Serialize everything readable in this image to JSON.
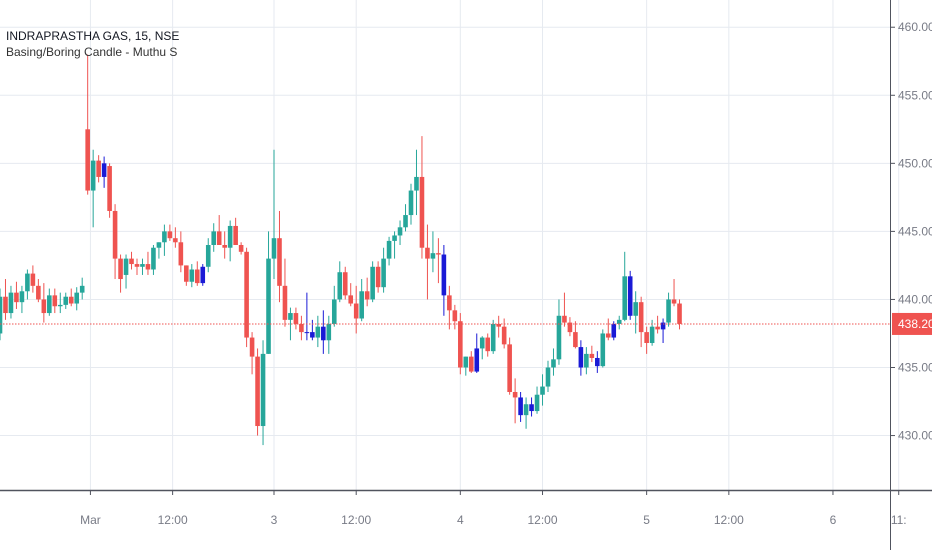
{
  "legend": {
    "symbol": "INDRAPRASTHA GAS, 15, NSE",
    "indicator": "Basing/Boring Candle - Muthu S"
  },
  "colors": {
    "up": "#26a69a",
    "down": "#ef5350",
    "boring": "#1a1ad6",
    "grid": "#e6eaf0",
    "axis": "#50535e",
    "price_line": "#ef5350"
  },
  "chart_data": {
    "type": "candlestick",
    "title": "INDRAPRASTHA GAS, 15, NSE",
    "subtitle": "Basing/Boring Candle - Muthu S",
    "ylim": [
      426,
      462
    ],
    "y_ticks": [
      430,
      435,
      440,
      445,
      450,
      455,
      460
    ],
    "y_tick_labels": [
      "430.00",
      "435.00",
      "440.00",
      "445.00",
      "450.00",
      "455.00",
      "460.00"
    ],
    "x_tick_labels": [
      {
        "label": "Mar",
        "bar": 16.5
      },
      {
        "label": "12:00",
        "bar": 31.5
      },
      {
        "label": "3",
        "bar": 50
      },
      {
        "label": "12:00",
        "bar": 65
      },
      {
        "label": "4",
        "bar": 84
      },
      {
        "label": "12:00",
        "bar": 99
      },
      {
        "label": "5",
        "bar": 118
      },
      {
        "label": "12:00",
        "bar": 133
      },
      {
        "label": "6",
        "bar": 152
      },
      {
        "label": "11:",
        "bar": 164
      }
    ],
    "last_price": 438.2,
    "last_price_label": "438.20",
    "candles": [
      [
        437.5,
        440.8,
        437.0,
        440.2
      ],
      [
        440.2,
        441.5,
        438.5,
        439.0
      ],
      [
        439.0,
        441.0,
        438.6,
        440.5
      ],
      [
        440.5,
        441.3,
        439.3,
        439.8
      ],
      [
        439.8,
        441.0,
        439.0,
        440.6
      ],
      [
        440.6,
        442.2,
        440.0,
        441.9
      ],
      [
        441.9,
        442.5,
        440.5,
        441.0
      ],
      [
        441.0,
        441.5,
        439.8,
        440.0
      ],
      [
        440.0,
        441.2,
        438.3,
        439.0
      ],
      [
        439.0,
        440.8,
        438.8,
        440.3
      ],
      [
        440.3,
        440.8,
        439.0,
        439.5
      ],
      [
        439.5,
        440.5,
        439.0,
        439.6
      ],
      [
        439.6,
        440.5,
        439.3,
        440.2
      ],
      [
        440.2,
        440.8,
        439.5,
        439.7
      ],
      [
        439.7,
        440.9,
        439.2,
        440.5
      ],
      [
        440.5,
        441.6,
        440.0,
        441.0
      ],
      [
        452.5,
        458.0,
        447.7,
        448.0
      ],
      [
        448.0,
        451.0,
        445.3,
        450.2
      ],
      [
        450.2,
        450.6,
        448.6,
        449.0
      ],
      [
        449.0,
        450.5,
        448.2,
        450.0
      ],
      [
        449.8,
        450.0,
        446.0,
        446.5
      ],
      [
        446.5,
        447.0,
        441.5,
        443.0
      ],
      [
        443.0,
        443.3,
        440.5,
        441.5
      ],
      [
        441.8,
        443.3,
        440.8,
        443.0
      ],
      [
        443.0,
        443.5,
        442.2,
        442.6
      ],
      [
        442.6,
        443.0,
        441.8,
        442.4
      ],
      [
        442.4,
        443.0,
        441.8,
        442.6
      ],
      [
        442.6,
        443.5,
        441.8,
        442.2
      ],
      [
        442.2,
        444.0,
        441.8,
        443.8
      ],
      [
        443.8,
        444.2,
        443.0,
        444.2
      ],
      [
        444.2,
        445.5,
        443.2,
        445.0
      ],
      [
        445.0,
        445.5,
        444.3,
        444.5
      ],
      [
        444.5,
        445.3,
        443.8,
        444.2
      ],
      [
        444.2,
        445.0,
        442.0,
        442.5
      ],
      [
        442.5,
        442.5,
        441.0,
        441.3
      ],
      [
        441.3,
        442.6,
        440.9,
        442.2
      ],
      [
        442.2,
        442.8,
        441.0,
        441.2
      ],
      [
        441.2,
        442.6,
        441.0,
        442.4
      ],
      [
        442.4,
        444.5,
        442.0,
        444.0
      ],
      [
        444.0,
        445.6,
        443.5,
        445.0
      ],
      [
        445.0,
        446.2,
        444.0,
        444.0
      ],
      [
        444.0,
        445.0,
        443.0,
        443.8
      ],
      [
        443.8,
        445.8,
        442.8,
        445.4
      ],
      [
        445.4,
        446.0,
        444.0,
        444.0
      ],
      [
        444.0,
        444.2,
        443.3,
        443.5
      ],
      [
        443.5,
        443.8,
        436.5,
        437.2
      ],
      [
        437.2,
        437.6,
        434.5,
        435.8
      ],
      [
        435.8,
        436.4,
        430.0,
        430.7
      ],
      [
        430.7,
        437.0,
        429.3,
        436.0
      ],
      [
        436.0,
        445.0,
        436.0,
        443.0
      ],
      [
        443.0,
        451.0,
        441.5,
        444.5
      ],
      [
        444.5,
        446.5,
        439.8,
        441.0
      ],
      [
        441.0,
        443.0,
        438.0,
        438.5
      ],
      [
        438.5,
        439.4,
        437.0,
        439.0
      ],
      [
        439.0,
        439.4,
        437.8,
        438.2
      ],
      [
        438.2,
        438.8,
        437.0,
        437.6
      ],
      [
        437.6,
        440.5,
        437.0,
        437.6
      ],
      [
        437.6,
        438.5,
        437.0,
        437.2
      ],
      [
        437.2,
        438.8,
        436.5,
        438.0
      ],
      [
        438.0,
        439.2,
        436.0,
        437.0
      ],
      [
        437.0,
        438.8,
        436.0,
        438.2
      ],
      [
        438.2,
        441.0,
        438.0,
        440.0
      ],
      [
        440.0,
        442.8,
        439.8,
        442.0
      ],
      [
        442.0,
        442.4,
        440.0,
        440.3
      ],
      [
        440.3,
        441.2,
        439.5,
        439.7
      ],
      [
        439.7,
        441.0,
        437.5,
        438.6
      ],
      [
        438.6,
        441.5,
        438.4,
        440.6
      ],
      [
        440.6,
        441.6,
        439.5,
        440.0
      ],
      [
        440.0,
        442.8,
        439.8,
        442.4
      ],
      [
        442.4,
        442.8,
        440.5,
        440.9
      ],
      [
        440.9,
        443.8,
        440.5,
        443.0
      ],
      [
        443.0,
        444.6,
        442.5,
        444.3
      ],
      [
        444.3,
        445.0,
        443.0,
        444.7
      ],
      [
        444.7,
        445.8,
        444.0,
        445.3
      ],
      [
        445.3,
        447.0,
        445.0,
        446.2
      ],
      [
        446.2,
        448.5,
        445.5,
        448.0
      ],
      [
        448.0,
        451.0,
        446.2,
        449.0
      ],
      [
        449.0,
        452.0,
        443.0,
        443.8
      ],
      [
        443.8,
        445.5,
        440.0,
        443.0
      ],
      [
        443.0,
        445.0,
        442.0,
        443.4
      ],
      [
        443.4,
        444.5,
        441.2,
        443.3
      ],
      [
        443.3,
        444.0,
        438.8,
        440.3
      ],
      [
        440.3,
        441.0,
        437.8,
        439.2
      ],
      [
        439.2,
        439.6,
        437.8,
        438.4
      ],
      [
        438.4,
        439.0,
        434.5,
        435.0
      ],
      [
        435.0,
        435.8,
        434.4,
        435.8
      ],
      [
        435.8,
        436.2,
        434.6,
        434.7
      ],
      [
        434.7,
        437.5,
        434.6,
        436.4
      ],
      [
        436.4,
        437.3,
        435.6,
        437.2
      ],
      [
        437.2,
        437.5,
        435.8,
        436.2
      ],
      [
        436.2,
        438.5,
        436.0,
        438.2
      ],
      [
        438.2,
        438.8,
        437.2,
        438.0
      ],
      [
        438.0,
        438.6,
        436.4,
        436.7
      ],
      [
        436.7,
        437.2,
        433.0,
        433.2
      ],
      [
        433.2,
        434.2,
        430.9,
        432.8
      ],
      [
        432.8,
        433.2,
        431.0,
        431.5
      ],
      [
        431.5,
        432.8,
        430.5,
        432.3
      ],
      [
        432.3,
        432.8,
        431.4,
        431.8
      ],
      [
        431.8,
        433.6,
        431.6,
        433.0
      ],
      [
        433.0,
        434.5,
        432.2,
        433.6
      ],
      [
        433.6,
        435.5,
        433.2,
        435.0
      ],
      [
        435.0,
        436.4,
        434.4,
        435.6
      ],
      [
        435.6,
        440.0,
        435.2,
        438.8
      ],
      [
        438.8,
        440.5,
        438.0,
        438.3
      ],
      [
        438.3,
        438.7,
        437.3,
        437.6
      ],
      [
        437.6,
        438.4,
        436.4,
        436.5
      ],
      [
        436.5,
        437.0,
        434.4,
        435.0
      ],
      [
        435.0,
        436.5,
        434.5,
        436.0
      ],
      [
        436.0,
        436.6,
        435.4,
        435.7
      ],
      [
        435.7,
        436.2,
        434.6,
        435.1
      ],
      [
        435.1,
        437.8,
        435.0,
        437.5
      ],
      [
        437.5,
        438.6,
        437.0,
        437.2
      ],
      [
        437.2,
        438.4,
        437.0,
        438.2
      ],
      [
        438.2,
        438.8,
        437.8,
        438.5
      ],
      [
        438.5,
        443.5,
        438.4,
        441.7
      ],
      [
        441.7,
        442.1,
        438.5,
        438.8
      ],
      [
        438.8,
        440.6,
        437.5,
        439.8
      ],
      [
        439.8,
        440.2,
        436.5,
        437.6
      ],
      [
        437.6,
        438.0,
        436.0,
        436.8
      ],
      [
        436.8,
        438.5,
        436.6,
        438.0
      ],
      [
        438.0,
        438.8,
        437.5,
        437.8
      ],
      [
        437.8,
        438.6,
        436.8,
        438.3
      ],
      [
        438.3,
        440.5,
        438.0,
        440.0
      ],
      [
        440.0,
        441.5,
        439.5,
        439.7
      ],
      [
        439.7,
        440.0,
        437.8,
        438.2
      ]
    ],
    "boring_candles": [
      19,
      37,
      56,
      57,
      59,
      81,
      87,
      95,
      97,
      106,
      109,
      112,
      115,
      121
    ]
  }
}
